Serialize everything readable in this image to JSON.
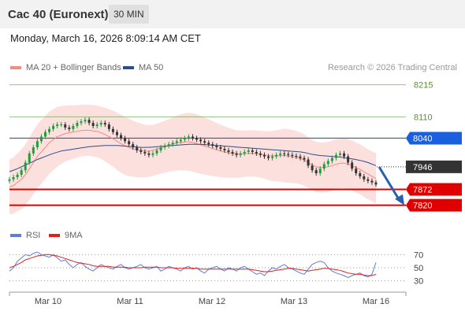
{
  "header": {
    "title": "Cac 40 (Euronext)",
    "interval": "30 MIN",
    "datetime": "Monday, March 16, 2026 8:09:14 AM CET"
  },
  "legend": {
    "items": [
      {
        "label": "MA 20 + Bollinger Bands",
        "color": "#f28b82"
      },
      {
        "label": "MA 50",
        "color": "#2a4f8a"
      }
    ],
    "credit": "Research © 2026 Trading Central"
  },
  "rsi_legend": {
    "items": [
      {
        "label": "RSI",
        "color": "#5b7fd6"
      },
      {
        "label": "9MA",
        "color": "#e02020"
      }
    ]
  },
  "chart_data": {
    "type": "candlestick",
    "y_range": [
      7770,
      8240
    ],
    "x_labels": [
      "Mar 10",
      "Mar 11",
      "Mar 12",
      "Mar 13",
      "Mar 16"
    ],
    "levels": [
      {
        "value": 8215,
        "label": "8215",
        "color": "#6aa84f",
        "style": "thin"
      },
      {
        "value": 8110,
        "label": "8110",
        "color": "#6aa84f",
        "style": "thin"
      },
      {
        "value": 8040,
        "label": "8040",
        "color": "#1a5fe0",
        "style": "box"
      },
      {
        "value": 7946,
        "label": "7946",
        "color": "#333333",
        "style": "dotted-box"
      },
      {
        "value": 7872,
        "label": "7872",
        "color": "#e00000",
        "style": "box"
      },
      {
        "value": 7820,
        "label": "7820",
        "color": "#e00000",
        "style": "box"
      }
    ],
    "close_series": [
      7905,
      7912,
      7920,
      7935,
      7960,
      7990,
      8010,
      8030,
      8045,
      8060,
      8070,
      8080,
      8085,
      8085,
      8075,
      8070,
      8080,
      8090,
      8095,
      8100,
      8090,
      8080,
      8085,
      8090,
      8085,
      8070,
      8060,
      8050,
      8040,
      8030,
      8020,
      8010,
      8000,
      7995,
      7990,
      7985,
      7990,
      8000,
      8010,
      8015,
      8020,
      8025,
      8030,
      8035,
      8040,
      8045,
      8040,
      8035,
      8030,
      8025,
      8020,
      8015,
      8010,
      8005,
      8000,
      7995,
      7990,
      7985,
      7990,
      7995,
      8000,
      7995,
      7990,
      7985,
      7980,
      7975,
      7980,
      7985,
      7990,
      7988,
      7985,
      7982,
      7980,
      7975,
      7970,
      7950,
      7935,
      7925,
      7940,
      7955,
      7965,
      7975,
      7985,
      7990,
      7980,
      7960,
      7940,
      7925,
      7915,
      7905,
      7900,
      7895,
      7888
    ],
    "ma20_series": [
      7880,
      7885,
      7895,
      7905,
      7920,
      7940,
      7960,
      7980,
      7995,
      8010,
      8025,
      8035,
      8045,
      8050,
      8055,
      8058,
      8060,
      8062,
      8065,
      8066,
      8066,
      8064,
      8062,
      8058,
      8052,
      8045,
      8038,
      8030,
      8022,
      8015,
      8010,
      8005,
      8002,
      8000,
      7998,
      7998,
      8000,
      8004,
      8008,
      8012,
      8016,
      8020,
      8024,
      8026,
      8028,
      8028,
      8026,
      8022,
      8018,
      8014,
      8010,
      8006,
      8002,
      7998,
      7995,
      7992,
      7990,
      7988,
      7988,
      7989,
      7990,
      7990,
      7989,
      7987,
      7985,
      7983,
      7982,
      7982,
      7983,
      7983,
      7982,
      7980,
      7978,
      7974,
      7968,
      7960,
      7952,
      7946,
      7944,
      7944,
      7946,
      7950,
      7954,
      7958,
      7958,
      7955,
      7950,
      7944,
      7938,
      7930,
      7922,
      7915,
      7908
    ],
    "ma50_series": [
      7930,
      7935,
      7940,
      7946,
      7952,
      7958,
      7964,
      7970,
      7975,
      7980,
      7985,
      7990,
      7994,
      7998,
      8000,
      8002,
      8004,
      8006,
      8008,
      8010,
      8012,
      8013,
      8014,
      8015,
      8016,
      8016,
      8016,
      8016,
      8015,
      8014,
      8013,
      8012,
      8011,
      8010,
      8010,
      8010,
      8011,
      8012,
      8013,
      8014,
      8015,
      8016,
      8017,
      8018,
      8019,
      8020,
      8020,
      8020,
      8020,
      8019,
      8018,
      8017,
      8016,
      8015,
      8014,
      8013,
      8012,
      8011,
      8010,
      8009,
      8008,
      8007,
      8006,
      8005,
      8004,
      8003,
      8002,
      8001,
      8000,
      7999,
      7998,
      7997,
      7996,
      7995,
      7993,
      7990,
      7987,
      7985,
      7983,
      7982,
      7981,
      7980,
      7979,
      7978,
      7976,
      7974,
      7972,
      7970,
      7967,
      7964,
      7960,
      7955,
      7950
    ],
    "bollinger_width": [
      90,
      92,
      95,
      98,
      100,
      102,
      104,
      105,
      105,
      104,
      102,
      100,
      98,
      95,
      92,
      90,
      88,
      86,
      85,
      84,
      84,
      84,
      85,
      86,
      88,
      90,
      92,
      94,
      95,
      95,
      94,
      92,
      90,
      88,
      86,
      85,
      84,
      84,
      84,
      85,
      86,
      88,
      90,
      92,
      94,
      95,
      96,
      96,
      95,
      94,
      92,
      90,
      88,
      86,
      84,
      82,
      80,
      78,
      77,
      76,
      76,
      76,
      76,
      77,
      78,
      80,
      82,
      84,
      86,
      88,
      88,
      87,
      86,
      85,
      84,
      83,
      82,
      82,
      82,
      82,
      82,
      82,
      82,
      82,
      82,
      82,
      82,
      82,
      82,
      82,
      82,
      82,
      82
    ],
    "projection": {
      "from": 7946,
      "to": 7820
    },
    "rsi": {
      "y_range": [
        20,
        80
      ],
      "levels": [
        70,
        50,
        30
      ],
      "rsi_series": [
        45,
        50,
        60,
        65,
        70,
        68,
        72,
        74,
        70,
        68,
        66,
        70,
        65,
        60,
        62,
        55,
        50,
        55,
        58,
        52,
        48,
        45,
        50,
        55,
        52,
        50,
        48,
        52,
        55,
        50,
        48,
        50,
        52,
        55,
        50,
        48,
        50,
        52,
        45,
        48,
        52,
        50,
        48,
        45,
        50,
        52,
        48,
        50,
        45,
        42,
        48,
        50,
        52,
        48,
        45,
        50,
        48,
        45,
        50,
        52,
        48,
        44,
        40,
        42,
        38,
        45,
        50,
        48,
        52,
        55,
        50,
        48,
        45,
        42,
        40,
        48,
        55,
        58,
        60,
        58,
        50,
        45,
        42,
        40,
        38,
        35,
        38,
        40,
        42,
        38,
        36,
        40,
        58
      ],
      "ma9_series": [
        50,
        52,
        55,
        58,
        62,
        64,
        66,
        68,
        69,
        70,
        70,
        69,
        68,
        66,
        64,
        62,
        60,
        58,
        57,
        56,
        55,
        53,
        52,
        52,
        52,
        52,
        51,
        51,
        51,
        51,
        50,
        50,
        50,
        50,
        51,
        51,
        51,
        51,
        50,
        50,
        50,
        50,
        49,
        49,
        49,
        49,
        49,
        49,
        48,
        48,
        48,
        48,
        48,
        48,
        48,
        48,
        48,
        48,
        48,
        48,
        48,
        47,
        46,
        45,
        44,
        44,
        45,
        46,
        47,
        48,
        49,
        49,
        48,
        47,
        46,
        45,
        46,
        47,
        48,
        49,
        49,
        48,
        47,
        46,
        44,
        42,
        41,
        40,
        40,
        39,
        38,
        38,
        40
      ]
    }
  }
}
